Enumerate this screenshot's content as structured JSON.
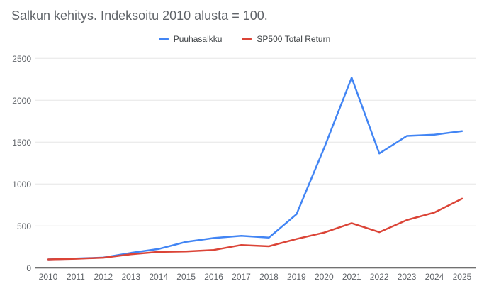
{
  "title": "Salkun kehitys. Indeksoitu 2010 alusta = 100.",
  "colors": {
    "series_blue": "#4285f4",
    "series_red": "#db4437",
    "grid": "#e6e6e6",
    "axis": "#424242",
    "tick_label": "#5f6368",
    "title_text": "#5f6368",
    "background": "#ffffff"
  },
  "chart_data": {
    "type": "line",
    "title": "Salkun kehitys. Indeksoitu 2010 alusta = 100.",
    "x": [
      2010,
      2011,
      2012,
      2013,
      2014,
      2015,
      2016,
      2017,
      2018,
      2019,
      2020,
      2021,
      2022,
      2023,
      2024,
      2025
    ],
    "series": [
      {
        "name": "Puuhasalkku",
        "color": "#4285f4",
        "values": [
          100,
          110,
          122,
          178,
          225,
          310,
          355,
          382,
          360,
          640,
          1430,
          2270,
          1365,
          1575,
          1590,
          1632
        ]
      },
      {
        "name": "SP500 Total Return",
        "color": "#db4437",
        "values": [
          100,
          108,
          120,
          162,
          190,
          195,
          213,
          272,
          257,
          344,
          420,
          533,
          425,
          570,
          660,
          825
        ]
      }
    ],
    "xlabel": "",
    "ylabel": "",
    "ylim": [
      0,
      2500
    ],
    "yticks": [
      0,
      500,
      1000,
      1500,
      2000,
      2500
    ],
    "grid": true,
    "legend_position": "top"
  }
}
